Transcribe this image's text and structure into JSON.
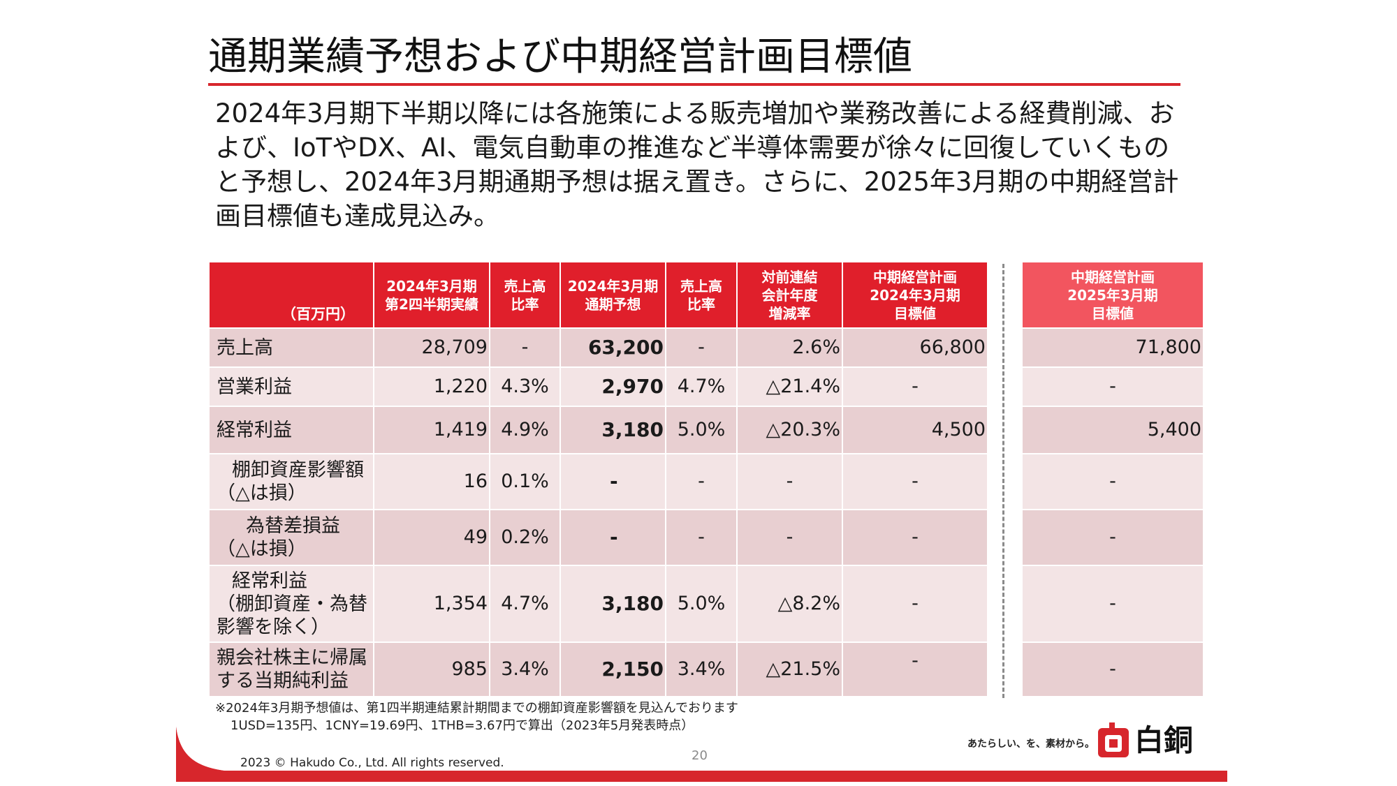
{
  "title": "通期業績予想および中期経営計画目標値",
  "summary": "2024年3月期下半期以降には各施策による販売増加や業務改善による経費削減、および、IoTやDX、AI、電気自動車の推進など半導体需要が徐々に回復していくものと予想し、2024年3月期通期予想は据え置き。さらに、2025年3月期の中期経営計画目標値も達成見込み。",
  "table": {
    "headers": {
      "unit": "（百万円）",
      "h1a": "2024年3月期",
      "h1b": "第2四半期実績",
      "h2a": "売上高",
      "h2b": "比率",
      "h3a": "2024年3月期",
      "h3b": "通期予想",
      "h4a": "売上高",
      "h4b": "比率",
      "h5a": "対前連結",
      "h5b": "会計年度",
      "h5c": "増減率",
      "h6a": "中期経営計画",
      "h6b": "2024年3月期",
      "h6c": "目標値",
      "h7a": "中期経営計画",
      "h7b": "2025年3月期",
      "h7c": "目標値"
    },
    "rows": [
      {
        "label1": "売上高",
        "label2": "",
        "label3": "",
        "q2": "28,709",
        "q2_ratio": "-",
        "forecast": "63,200",
        "f_ratio": "-",
        "change": "2.6%",
        "target24": "66,800",
        "target25": "71,800"
      },
      {
        "label1": "営業利益",
        "label2": "",
        "label3": "",
        "q2": "1,220",
        "q2_ratio": "4.3%",
        "forecast": "2,970",
        "f_ratio": "4.7%",
        "change": "△21.4%",
        "target24": "-",
        "target25": "-"
      },
      {
        "label1": "経常利益",
        "label2": "",
        "label3": "",
        "q2": "1,419",
        "q2_ratio": "4.9%",
        "forecast": "3,180",
        "f_ratio": "5.0%",
        "change": "△20.3%",
        "target24": "4,500",
        "target25": "5,400"
      },
      {
        "label1": "棚卸資産影響額",
        "label2": "（△は損）",
        "label3": "",
        "q2": "16",
        "q2_ratio": "0.1%",
        "forecast": "-",
        "f_ratio": "-",
        "change": "-",
        "target24": "-",
        "target25": "-"
      },
      {
        "label1": "為替差損益",
        "label2": "（△は損）",
        "label3": "",
        "q2": "49",
        "q2_ratio": "0.2%",
        "forecast": "-",
        "f_ratio": "-",
        "change": "-",
        "target24": "-",
        "target25": "-"
      },
      {
        "label1": "経常利益",
        "label2": "（棚卸資産・為替",
        "label3": "影響を除く）",
        "q2": "1,354",
        "q2_ratio": "4.7%",
        "forecast": "3,180",
        "f_ratio": "5.0%",
        "change": "△8.2%",
        "target24": "-",
        "target25": "-"
      },
      {
        "label1": "親会社株主に帰属",
        "label2": "する当期純利益",
        "label3": "",
        "q2": "985",
        "q2_ratio": "3.4%",
        "forecast": "2,150",
        "f_ratio": "3.4%",
        "change": "△21.5%",
        "target24": "-",
        "target25": "-"
      }
    ]
  },
  "footnote": {
    "line1": "※2024年3月期予想値は、第1四半期連結累計期間までの棚卸資産影響額を見込んでおります",
    "line2": "1USD=135円、1CNY=19.69円、1THB=3.67円で算出（2023年5月発表時点）"
  },
  "footer": {
    "copyright": "2023 © Hakudo Co., Ltd. All rights reserved.",
    "page_number": "20",
    "tagline": "あたらしい、を、素材から。",
    "logo_text": "白銅",
    "accent_color": "#d7262c"
  }
}
